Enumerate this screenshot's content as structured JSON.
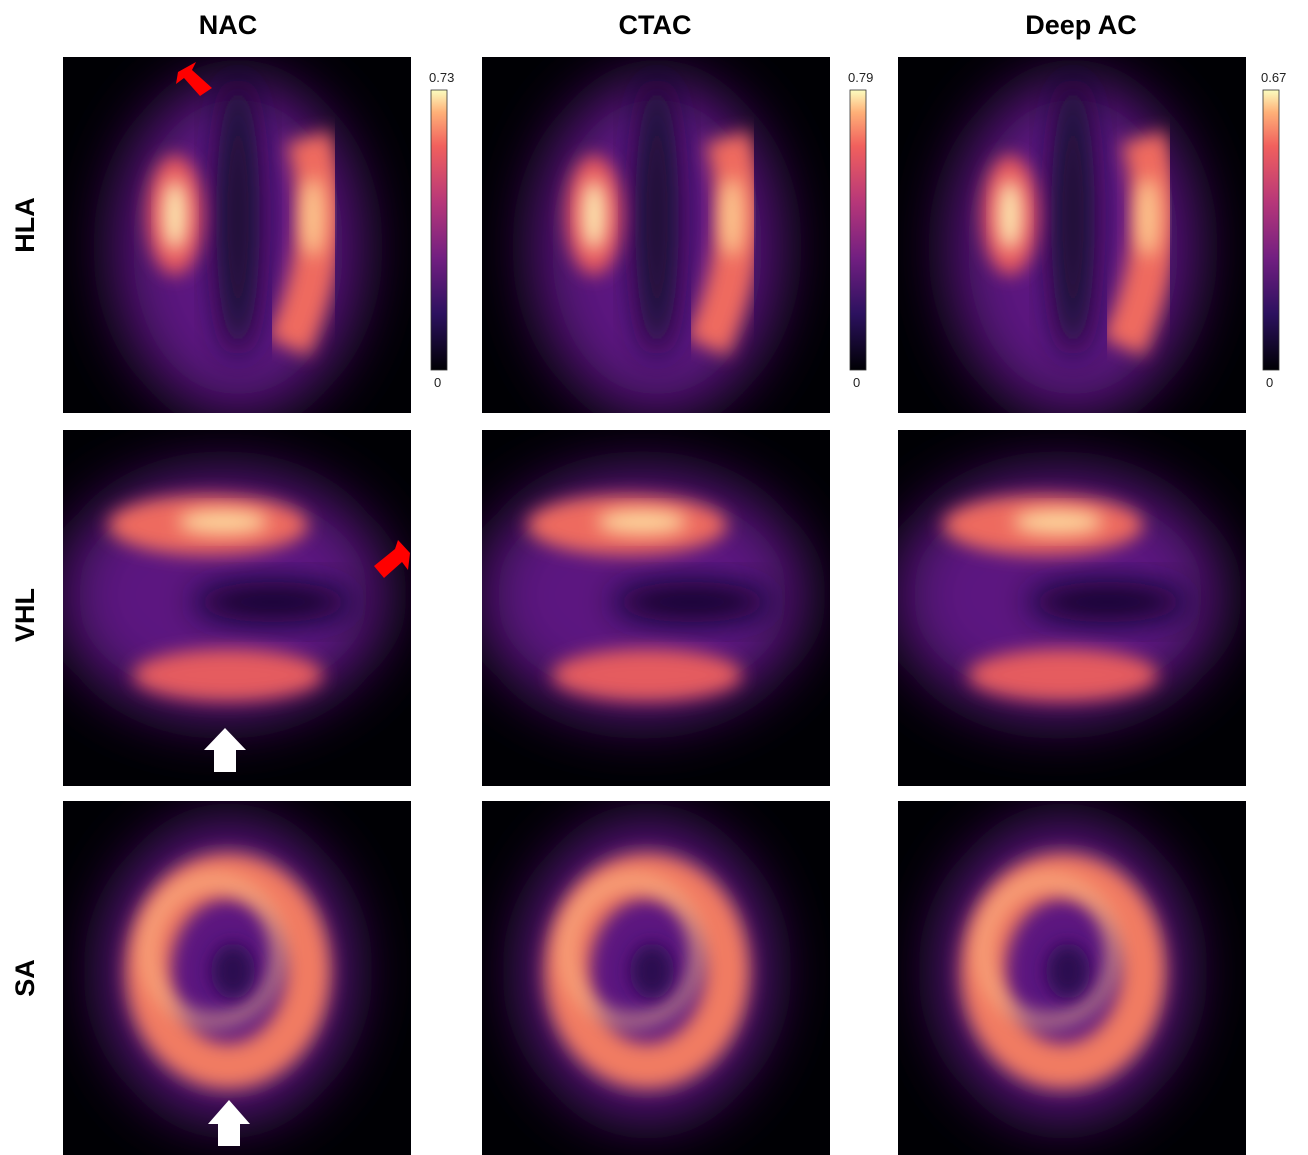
{
  "columns": [
    {
      "title": "NAC",
      "colorbar": {
        "max": 0.73,
        "min": 0
      }
    },
    {
      "title": "CTAC",
      "colorbar": {
        "max": 0.79,
        "min": 0
      }
    },
    {
      "title": "Deep AC",
      "colorbar": {
        "max": 0.67,
        "min": 0
      }
    }
  ],
  "rows": [
    "HLA",
    "VHL",
    "SA"
  ]
}
